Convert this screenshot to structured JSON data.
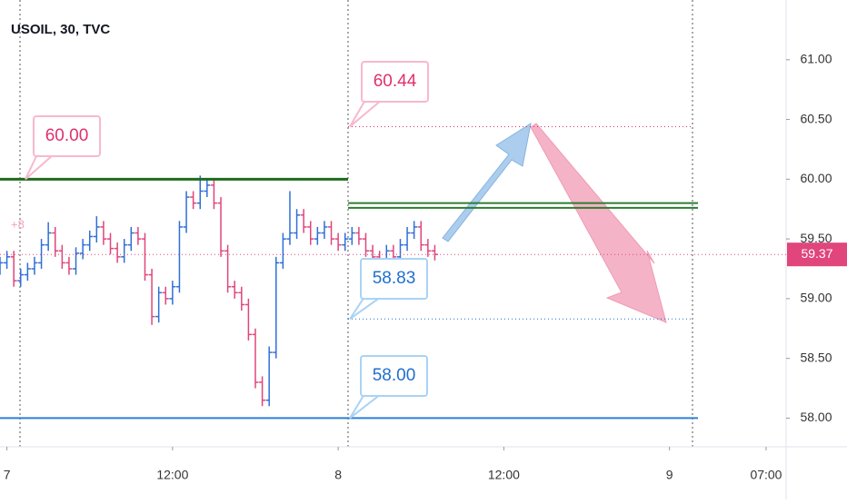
{
  "chart_data": {
    "type": "ohlc",
    "title": "USOIL, 30, TVC",
    "faint_label": "+8",
    "up_color": "#2f6fd8",
    "down_color": "#e0457b",
    "xlim": [
      -0.5,
      56.45
    ],
    "ylim": [
      57.76,
      61.5
    ],
    "xticks": [
      {
        "value": 0,
        "label": "7"
      },
      {
        "value": 12,
        "label": "12:00"
      },
      {
        "value": 24,
        "label": "8"
      },
      {
        "value": 36,
        "label": "12:00"
      },
      {
        "value": 48,
        "label": "9"
      },
      {
        "value": 55,
        "label": "07:00"
      }
    ],
    "yticks": [
      {
        "value": 58,
        "label": "58.00"
      },
      {
        "value": 58.5,
        "label": "58.50"
      },
      {
        "value": 59,
        "label": "59.00"
      },
      {
        "value": 59.5,
        "label": "59.50"
      },
      {
        "value": 60,
        "label": "60.00"
      },
      {
        "value": 60.5,
        "label": "60.50"
      },
      {
        "value": 61,
        "label": "61.00"
      }
    ],
    "x": [
      -0.5,
      0,
      0.5,
      1,
      1.5,
      2,
      2.5,
      3,
      3.5,
      4,
      4.5,
      5,
      5.5,
      6,
      6.5,
      7,
      7.5,
      8,
      8.5,
      9,
      9.5,
      10,
      10.5,
      11,
      11.5,
      12,
      12.5,
      13,
      13.5,
      14,
      14.5,
      15,
      15.5,
      16,
      16.5,
      17,
      17.5,
      18,
      18.5,
      19,
      19.5,
      20,
      20.5,
      21,
      21.5,
      22,
      22.5,
      23,
      23.5,
      24,
      24.5,
      25,
      25.5,
      26,
      26.5,
      27,
      27.5,
      28,
      28.5,
      29,
      29.5,
      30,
      30.5,
      31
    ],
    "open": [
      59.25,
      59.3,
      59.35,
      59.15,
      59.2,
      59.25,
      59.3,
      59.45,
      59.55,
      59.4,
      59.3,
      59.25,
      59.38,
      59.45,
      59.52,
      59.6,
      59.5,
      59.42,
      59.35,
      59.45,
      59.55,
      59.5,
      59.2,
      58.85,
      59.05,
      59.0,
      59.1,
      59.6,
      59.85,
      59.8,
      59.9,
      59.95,
      59.8,
      59.4,
      59.1,
      59.05,
      58.95,
      58.7,
      58.3,
      58.15,
      58.55,
      59.3,
      59.5,
      59.55,
      59.7,
      59.6,
      59.5,
      59.55,
      59.6,
      59.5,
      59.45,
      59.5,
      59.55,
      59.5,
      59.4,
      59.35,
      59.3,
      59.4,
      59.35,
      59.45,
      59.55,
      59.6,
      59.45,
      59.4
    ],
    "high": [
      59.35,
      59.4,
      59.4,
      59.25,
      59.3,
      59.35,
      59.5,
      59.64,
      59.6,
      59.45,
      59.35,
      59.43,
      59.5,
      59.57,
      59.69,
      59.65,
      59.55,
      59.47,
      59.5,
      59.6,
      59.6,
      59.55,
      59.25,
      59.1,
      59.1,
      59.15,
      59.65,
      59.9,
      59.9,
      60.03,
      60.0,
      60.0,
      59.85,
      59.45,
      59.15,
      59.1,
      59.0,
      58.75,
      58.35,
      58.6,
      59.35,
      59.55,
      59.9,
      59.75,
      59.75,
      59.65,
      59.6,
      59.65,
      59.65,
      59.55,
      59.55,
      59.6,
      59.6,
      59.55,
      59.45,
      59.4,
      59.45,
      59.45,
      59.5,
      59.6,
      59.65,
      59.65,
      59.5,
      59.45
    ],
    "low": [
      59.2,
      59.25,
      59.1,
      59.1,
      59.15,
      59.2,
      59.25,
      59.4,
      59.35,
      59.25,
      59.2,
      59.2,
      59.33,
      59.4,
      59.47,
      59.45,
      59.37,
      59.3,
      59.3,
      59.4,
      59.45,
      59.15,
      58.78,
      58.8,
      58.95,
      58.95,
      59.05,
      59.55,
      59.75,
      59.75,
      59.85,
      59.75,
      59.35,
      59.05,
      59.0,
      58.9,
      58.65,
      58.25,
      58.1,
      58.1,
      58.5,
      59.25,
      59.45,
      59.5,
      59.55,
      59.45,
      59.45,
      59.5,
      59.45,
      59.4,
      59.4,
      59.45,
      59.45,
      59.35,
      59.3,
      59.25,
      59.25,
      59.3,
      59.3,
      59.4,
      59.5,
      59.4,
      59.35,
      59.32
    ],
    "close": [
      59.3,
      59.35,
      59.15,
      59.2,
      59.25,
      59.3,
      59.45,
      59.55,
      59.4,
      59.3,
      59.25,
      59.38,
      59.45,
      59.52,
      59.6,
      59.5,
      59.42,
      59.35,
      59.45,
      59.55,
      59.5,
      59.2,
      58.85,
      59.05,
      59.0,
      59.1,
      59.6,
      59.85,
      59.8,
      59.9,
      59.95,
      59.8,
      59.4,
      59.1,
      59.05,
      58.95,
      58.7,
      58.3,
      58.15,
      58.55,
      59.3,
      59.5,
      59.55,
      59.7,
      59.6,
      59.5,
      59.55,
      59.6,
      59.5,
      59.45,
      59.5,
      59.55,
      59.5,
      59.4,
      59.35,
      59.3,
      59.4,
      59.35,
      59.45,
      59.55,
      59.6,
      59.45,
      59.4,
      59.37
    ],
    "last_price": 59.37,
    "levels": [
      {
        "value": 60,
        "color": "#1e6b1e"
      },
      {
        "value": 59.8,
        "color": "#2e7d32"
      },
      {
        "value": 59.76,
        "color": "#2e7d32"
      },
      {
        "value": 58,
        "color": "#2f7fd6"
      }
    ],
    "annotations": [
      {
        "value": 60,
        "label": "60.00",
        "color": "#e0306e"
      },
      {
        "value": 60.44,
        "label": "60.44",
        "color": "#e0306e"
      },
      {
        "value": 58.83,
        "label": "58.83",
        "color": "#1e6fd0"
      },
      {
        "value": 58,
        "label": "58.00",
        "color": "#1e6fd0"
      }
    ]
  }
}
